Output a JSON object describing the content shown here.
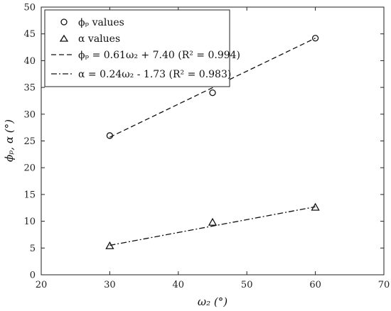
{
  "chart_data": {
    "type": "scatter",
    "title": "",
    "xlabel": "ω₂ (°)",
    "ylabel": "ϕₚ, α (°)",
    "xlim": [
      20,
      70
    ],
    "ylim": [
      0,
      50
    ],
    "xticks": [
      20,
      30,
      40,
      50,
      60,
      70
    ],
    "yticks": [
      0,
      5,
      10,
      15,
      20,
      25,
      30,
      35,
      40,
      45,
      50
    ],
    "grid": false,
    "legend_position": "top-left",
    "series": [
      {
        "name": "ϕₚ values",
        "marker": "circle",
        "x": [
          30,
          45,
          60
        ],
        "y": [
          26.0,
          34.0,
          44.2
        ]
      },
      {
        "name": "α values",
        "marker": "triangle",
        "x": [
          30,
          45,
          60
        ],
        "y": [
          5.4,
          9.8,
          12.6
        ]
      },
      {
        "name": "ϕₚ = 0.61ω₂ + 7.40 (R² = 0.994)",
        "line": "dashed",
        "x": [
          30,
          60
        ],
        "y": [
          25.7,
          44.2
        ]
      },
      {
        "name": "α = 0.24ω₂ - 1.73 (R² = 0.983)",
        "line": "dash-dot",
        "x": [
          30,
          60
        ],
        "y": [
          5.5,
          12.7
        ]
      }
    ]
  }
}
